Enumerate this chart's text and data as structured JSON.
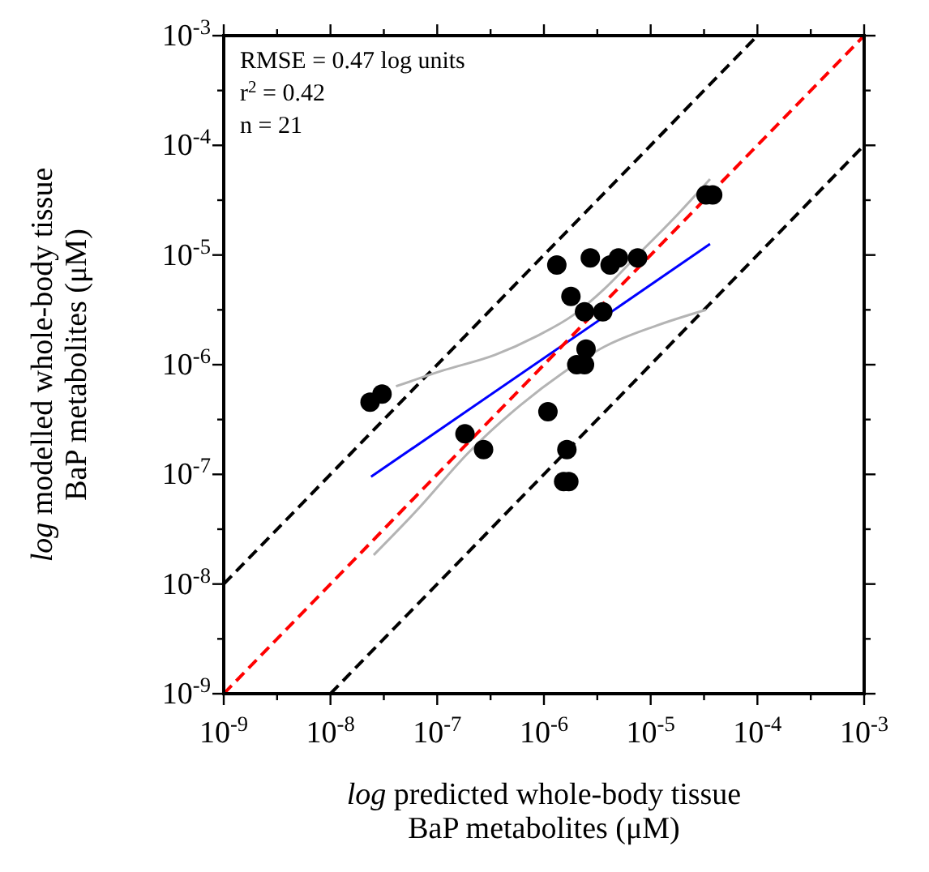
{
  "chart_data": {
    "type": "scatter",
    "xlabel": "log predicted whole-body tissue BaP metabolites (μM)",
    "ylabel": "log modelled whole-body tissue BaP metabolites (μM)",
    "annotations": [
      "RMSE = 0.47 log units",
      "r$^{2}$ = 0.42",
      "n = 21"
    ],
    "log": "xy",
    "grid": false,
    "marker": "circle",
    "xlim": [
      1e-09,
      0.001
    ],
    "ylim": [
      1e-09,
      0.001
    ],
    "xticks": [
      {
        "value": 1e-09,
        "label": "10$^{-9}$"
      },
      {
        "value": 3.162e-09,
        "label": null
      },
      {
        "value": 1e-08,
        "label": "10$^{-8}$"
      },
      {
        "value": 3.162e-08,
        "label": null
      },
      {
        "value": 1e-07,
        "label": "10$^{-7}$"
      },
      {
        "value": 3.162e-07,
        "label": null
      },
      {
        "value": 1e-06,
        "label": "10$^{-6}$"
      },
      {
        "value": 3.162e-06,
        "label": null
      },
      {
        "value": 1e-05,
        "label": "10$^{-5}$"
      },
      {
        "value": 3.162e-05,
        "label": null
      },
      {
        "value": 0.0001,
        "label": "10$^{-4}$"
      },
      {
        "value": 0.0003162,
        "label": null
      },
      {
        "value": 0.001,
        "label": "10$^{-3}$"
      }
    ],
    "yticks": [
      {
        "value": 1e-09,
        "label": "10$^{-9}$"
      },
      {
        "value": 3.162e-09,
        "label": null
      },
      {
        "value": 1e-08,
        "label": "10$^{-8}$"
      },
      {
        "value": 3.162e-08,
        "label": null
      },
      {
        "value": 1e-07,
        "label": "10$^{-7}$"
      },
      {
        "value": 3.162e-07,
        "label": null
      },
      {
        "value": 1e-06,
        "label": "10$^{-6}$"
      },
      {
        "value": 3.162e-06,
        "label": null
      },
      {
        "value": 1e-05,
        "label": "10$^{-5}$"
      },
      {
        "value": 3.162e-05,
        "label": null
      },
      {
        "value": 0.0001,
        "label": "10$^{-4}$"
      },
      {
        "value": 0.0003162,
        "label": null
      },
      {
        "value": 0.001,
        "label": "10$^{-3}$"
      }
    ],
    "series": [
      {
        "type": "line",
        "color": "#000000",
        "line_style": "dashed",
        "marker": "none",
        "x": [
          1e-09,
          0.0001
        ],
        "values": [
          1e-08,
          0.001
        ]
      },
      {
        "type": "line",
        "color": "#000000",
        "line_style": "dashed",
        "marker": "none",
        "x": [
          1e-08,
          0.001
        ],
        "values": [
          1e-09,
          0.0001
        ]
      },
      {
        "type": "line",
        "color": "#b4b4b4",
        "line_style": "solid",
        "marker": "none",
        "x": [
          4.11e-08,
          1.13e-07,
          3.48e-07,
          8.53e-07,
          1.88e-06,
          3.69e-06,
          7.23e-06,
          1.77e-05,
          3.6e-05
        ],
        "values": [
          6.35e-07,
          8.85e-07,
          1.23e-06,
          1.82e-06,
          2.83e-06,
          4.92e-06,
          9.57e-06,
          2.32e-05,
          4.92e-05
        ]
      },
      {
        "type": "line",
        "color": "#b4b4b4",
        "line_style": "solid",
        "marker": "none",
        "x": [
          2.54e-08,
          6.46e-08,
          1.99e-07,
          6.1e-07,
          1.5e-06,
          3.69e-06,
          1.13e-05,
          3.3e-05
        ],
        "values": [
          1.84e-08,
          4.71e-08,
          1.6e-07,
          4.32e-07,
          8.4e-07,
          1.46e-06,
          2.27e-06,
          3.17e-06
        ]
      },
      {
        "type": "line",
        "color": "#0000ff",
        "line_style": "solid",
        "marker": "none",
        "x": [
          2.4e-08,
          3.6e-05
        ],
        "values": [
          9.5e-08,
          1.26e-05
        ]
      },
      {
        "type": "line",
        "color": "#ff0000",
        "line_style": "dashed",
        "marker": "none",
        "x": [
          1e-09,
          0.001
        ],
        "values": [
          1e-09,
          0.001
        ]
      },
      {
        "color": "#000000",
        "x": [
          2.35e-08,
          3.04e-08,
          1.82e-07,
          2.72e-07,
          1.09e-06,
          1.64e-06,
          1.53e-06,
          1.71e-06,
          1.32e-06,
          1.79e-06,
          2.72e-06,
          4.17e-06,
          4.99e-06,
          7.55e-06,
          2.4e-06,
          3.56e-06,
          2.48e-06,
          2.03e-06,
          2.4e-06,
          3.3e-05,
          3.81e-05
        ],
        "values": [
          4.55e-07,
          5.4e-07,
          2.34e-07,
          1.68e-07,
          3.73e-07,
          1.68e-07,
          8.6e-08,
          8.6e-08,
          8.1e-06,
          4.2e-06,
          9.4e-06,
          8.1e-06,
          9.4e-06,
          9.4e-06,
          3.03e-06,
          3.03e-06,
          1.39e-06,
          1e-06,
          1e-06,
          3.53e-05,
          3.53e-05
        ]
      }
    ]
  }
}
